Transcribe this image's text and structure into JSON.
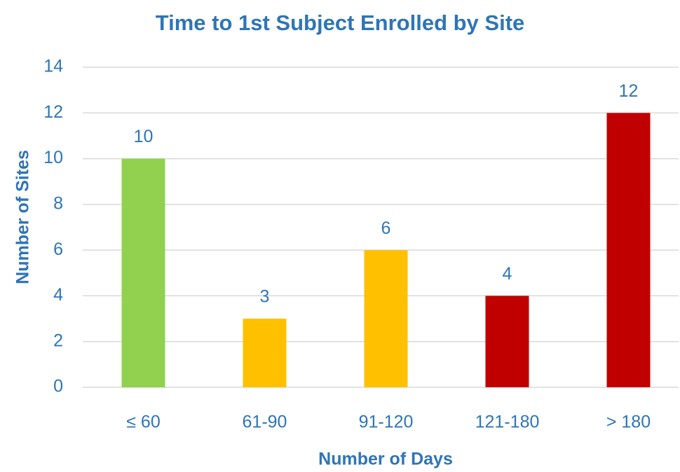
{
  "chart_data": {
    "type": "bar",
    "title": "Time to 1st Subject Enrolled by Site",
    "x_label": "Number of Days",
    "y_label": "Number of Sites",
    "categories": [
      "≤ 60",
      "61-90",
      "91-120",
      "121-180",
      "> 180"
    ],
    "values": [
      10,
      3,
      6,
      4,
      12
    ],
    "colors": [
      "#92d050",
      "#ffc000",
      "#ffc000",
      "#c00000",
      "#c00000"
    ],
    "ylim": [
      0,
      14
    ],
    "yticks": [
      0,
      2,
      4,
      6,
      8,
      10,
      12,
      14
    ],
    "grid": true
  }
}
